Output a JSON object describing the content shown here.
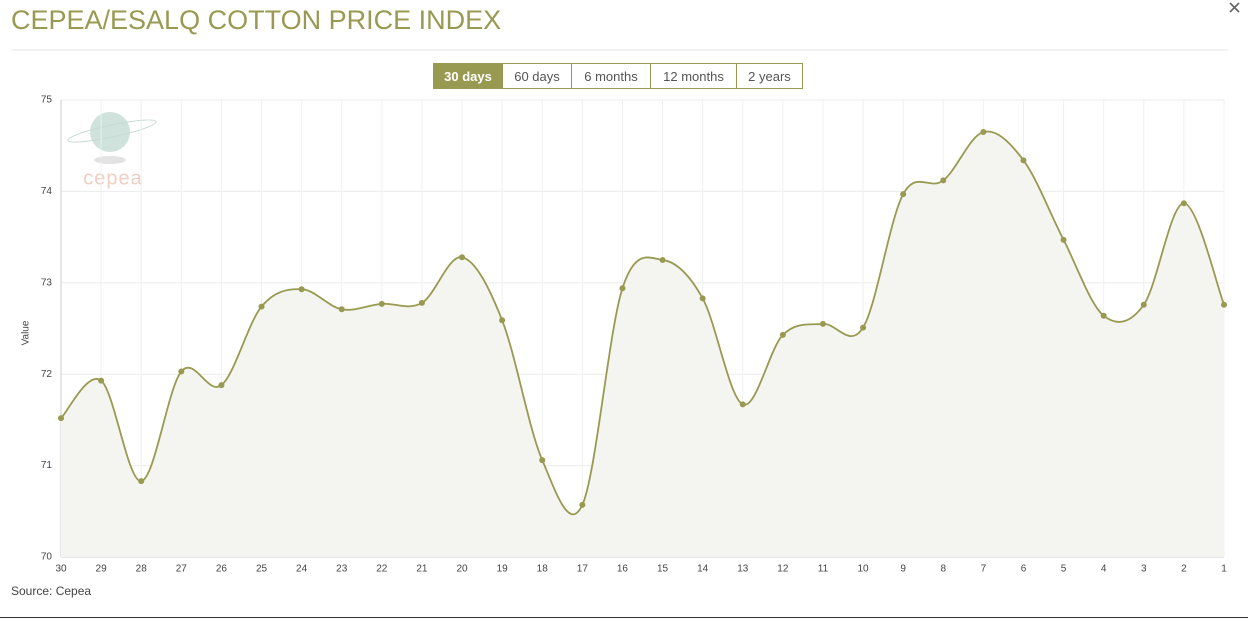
{
  "title": "CEPEA/ESALQ COTTON PRICE INDEX",
  "range_buttons": [
    "30 days",
    "60 days",
    "6 months",
    "12 months",
    "2 years"
  ],
  "active_button": 0,
  "logo_text": "cepea",
  "source": "Source: Cepea",
  "chart_data": {
    "type": "area",
    "ylabel": "Value",
    "categories": [
      "30",
      "29",
      "28",
      "27",
      "26",
      "25",
      "24",
      "23",
      "22",
      "21",
      "20",
      "19",
      "18",
      "17",
      "16",
      "15",
      "14",
      "13",
      "12",
      "11",
      "10",
      "9",
      "8",
      "7",
      "6",
      "5",
      "4",
      "3",
      "2",
      "1"
    ],
    "series": [
      {
        "name": "Value",
        "color": "#999a52",
        "values": [
          71.52,
          71.93,
          70.83,
          72.03,
          71.88,
          72.74,
          72.93,
          72.71,
          72.77,
          72.78,
          73.28,
          72.59,
          71.06,
          70.57,
          72.94,
          73.25,
          72.83,
          71.67,
          72.43,
          72.55,
          72.51,
          73.97,
          74.12,
          74.65,
          74.34,
          73.47,
          72.64,
          72.76,
          73.87,
          72.76
        ]
      }
    ],
    "ylim": [
      70,
      75
    ],
    "yticks": [
      70,
      71,
      72,
      73,
      74,
      75
    ],
    "grid": true
  }
}
